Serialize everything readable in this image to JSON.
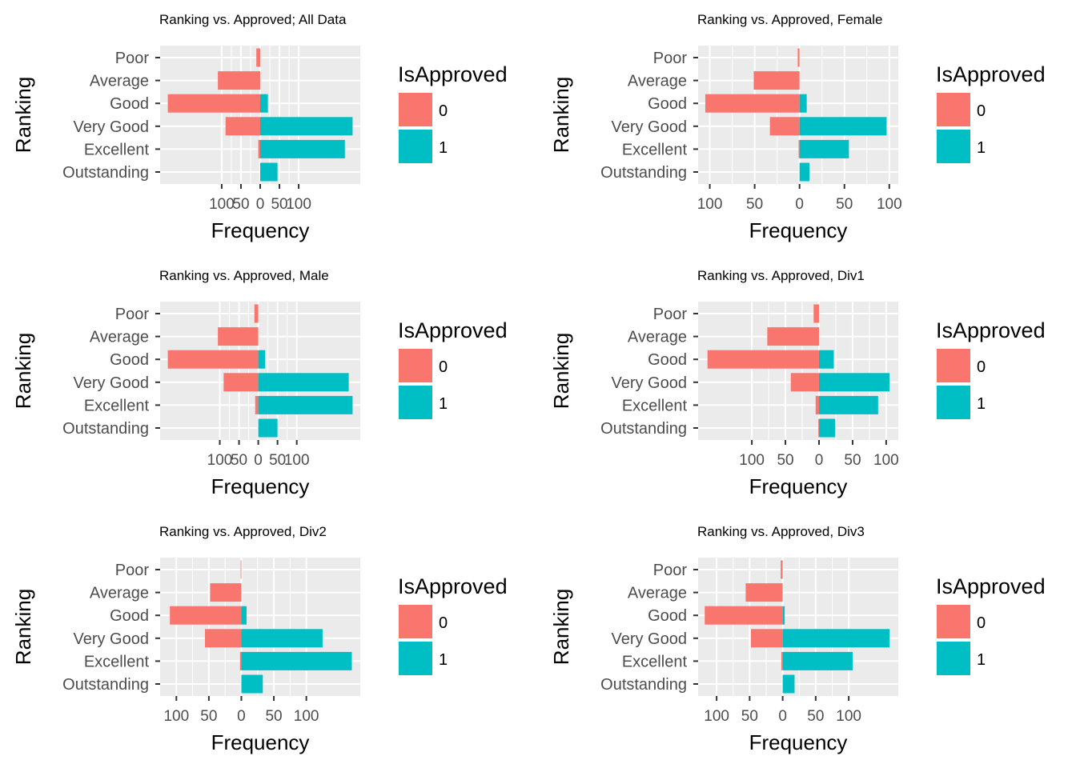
{
  "colors": {
    "not_approved": "#F8766D",
    "approved": "#00BFC4",
    "panel": "#EBEBEB",
    "grid": "#FFFFFF",
    "tick": "#333333"
  },
  "chart_data": [
    {
      "type": "bar",
      "orientation": "horizontal-diverging",
      "title": "Ranking vs. Approved; All Data",
      "xlabel": "Frequency",
      "ylabel": "Ranking",
      "categories": [
        "Poor",
        "Average",
        "Good",
        "Very Good",
        "Excellent",
        "Outstanding"
      ],
      "series": [
        {
          "name": "0",
          "values": [
            10,
            110,
            240,
            90,
            5,
            0
          ]
        },
        {
          "name": "1",
          "values": [
            0,
            0,
            20,
            240,
            220,
            45
          ]
        }
      ],
      "xlim": [
        -260,
        260
      ],
      "xticks": [
        -100,
        -50,
        0,
        50,
        100
      ],
      "xtick_labels": [
        "100",
        "50",
        "0",
        "50",
        "100"
      ],
      "legend": {
        "title": "IsApproved",
        "entries": [
          "0",
          "1"
        ],
        "position": "right"
      }
    },
    {
      "type": "bar",
      "orientation": "horizontal-diverging",
      "title": "Ranking vs. Approved, Female",
      "xlabel": "Frequency",
      "ylabel": "Ranking",
      "categories": [
        "Poor",
        "Average",
        "Good",
        "Very Good",
        "Excellent",
        "Outstanding"
      ],
      "series": [
        {
          "name": "0",
          "values": [
            2,
            51,
            105,
            33,
            1,
            0
          ]
        },
        {
          "name": "1",
          "values": [
            0,
            0,
            8,
            97,
            55,
            11
          ]
        }
      ],
      "xlim": [
        -113,
        110
      ],
      "xticks": [
        -100,
        -50,
        0,
        50,
        100
      ],
      "xtick_labels": [
        "100",
        "50",
        "0",
        "50",
        "100"
      ],
      "legend": {
        "title": "IsApproved",
        "entries": [
          "0",
          "1"
        ],
        "position": "right"
      }
    },
    {
      "type": "bar",
      "orientation": "horizontal-diverging",
      "title": "Ranking vs. Approved, Male",
      "xlabel": "Frequency",
      "ylabel": "Ranking",
      "categories": [
        "Poor",
        "Average",
        "Good",
        "Very Good",
        "Excellent",
        "Outstanding"
      ],
      "series": [
        {
          "name": "0",
          "values": [
            10,
            105,
            235,
            90,
            8,
            0
          ]
        },
        {
          "name": "1",
          "values": [
            0,
            0,
            18,
            235,
            245,
            50
          ]
        }
      ],
      "xlim": [
        -255,
        265
      ],
      "xticks": [
        -100,
        -50,
        0,
        50,
        100
      ],
      "xtick_labels": [
        "100",
        "50",
        "0",
        "50",
        "100"
      ],
      "legend": {
        "title": "IsApproved",
        "entries": [
          "0",
          "1"
        ],
        "position": "right"
      }
    },
    {
      "type": "bar",
      "orientation": "horizontal-diverging",
      "title": "Ranking vs. Approved, Div1",
      "xlabel": "Frequency",
      "ylabel": "Ranking",
      "categories": [
        "Poor",
        "Average",
        "Good",
        "Very Good",
        "Excellent",
        "Outstanding"
      ],
      "series": [
        {
          "name": "0",
          "values": [
            8,
            77,
            166,
            42,
            5,
            1
          ]
        },
        {
          "name": "1",
          "values": [
            0,
            0,
            22,
            105,
            88,
            24
          ]
        }
      ],
      "xlim": [
        -180,
        118
      ],
      "xticks": [
        -100,
        -50,
        0,
        50,
        100
      ],
      "xtick_labels": [
        "100",
        "50",
        "0",
        "50",
        "100"
      ],
      "legend": {
        "title": "IsApproved",
        "entries": [
          "0",
          "1"
        ],
        "position": "right"
      }
    },
    {
      "type": "bar",
      "orientation": "horizontal-diverging",
      "title": "Ranking vs. Approved, Div2",
      "xlabel": "Frequency",
      "ylabel": "Ranking",
      "categories": [
        "Poor",
        "Average",
        "Good",
        "Very Good",
        "Excellent",
        "Outstanding"
      ],
      "series": [
        {
          "name": "0",
          "values": [
            1,
            48,
            110,
            56,
            2,
            0
          ]
        },
        {
          "name": "1",
          "values": [
            0,
            0,
            8,
            125,
            170,
            33
          ]
        }
      ],
      "xlim": [
        -125,
        183
      ],
      "xticks": [
        -100,
        -50,
        0,
        50,
        100
      ],
      "xtick_labels": [
        "100",
        "50",
        "0",
        "50",
        "100"
      ],
      "legend": {
        "title": "IsApproved",
        "entries": [
          "0",
          "1"
        ],
        "position": "right"
      }
    },
    {
      "type": "bar",
      "orientation": "horizontal-diverging",
      "title": "Ranking vs. Approved, Div3",
      "xlabel": "Frequency",
      "ylabel": "Ranking",
      "categories": [
        "Poor",
        "Average",
        "Good",
        "Very Good",
        "Excellent",
        "Outstanding"
      ],
      "series": [
        {
          "name": "0",
          "values": [
            3,
            56,
            118,
            48,
            2,
            0
          ]
        },
        {
          "name": "1",
          "values": [
            0,
            0,
            3,
            162,
            106,
            18
          ]
        }
      ],
      "xlim": [
        -128,
        175
      ],
      "xticks": [
        -100,
        -50,
        0,
        50,
        100
      ],
      "xtick_labels": [
        "100",
        "50",
        "0",
        "50",
        "100"
      ],
      "legend": {
        "title": "IsApproved",
        "entries": [
          "0",
          "1"
        ],
        "position": "right"
      }
    }
  ]
}
